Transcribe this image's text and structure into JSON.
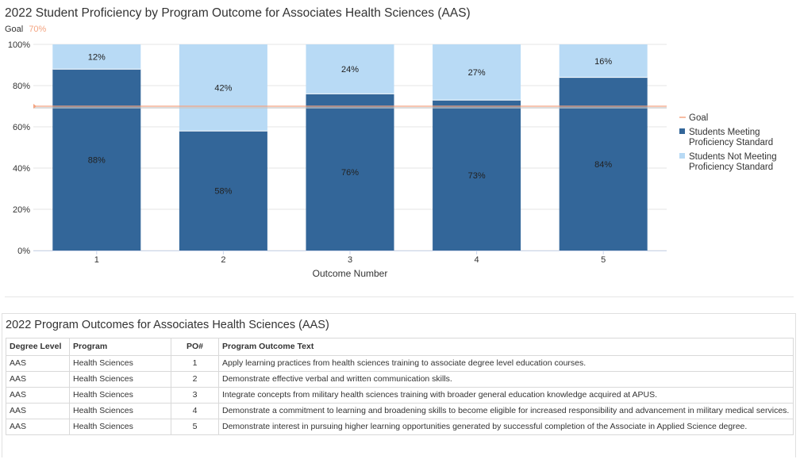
{
  "chart_data": {
    "type": "bar",
    "stacked": true,
    "title": "2022 Student Proficiency by Program Outcome for Associates Health Sciences (AAS)",
    "goal": {
      "label": "Goal",
      "value": 70,
      "value_label": "70%",
      "color": "#f4a582"
    },
    "xlabel": "Outcome Number",
    "ylabel": "",
    "categories": [
      "1",
      "2",
      "3",
      "4",
      "5"
    ],
    "ylim": [
      0,
      100
    ],
    "yticks": [
      "0%",
      "20%",
      "40%",
      "60%",
      "80%",
      "100%"
    ],
    "series": [
      {
        "name": "Students Meeting Proficiency Standard",
        "values": [
          88,
          58,
          76,
          73,
          84
        ],
        "labels": [
          "88%",
          "58%",
          "76%",
          "73%",
          "84%"
        ],
        "color": "#336699"
      },
      {
        "name": "Students Not Meeting Proficiency Standard",
        "values": [
          12,
          42,
          24,
          27,
          16
        ],
        "labels": [
          "12%",
          "42%",
          "24%",
          "27%",
          "16%"
        ],
        "color": "#b8daf5"
      }
    ],
    "legend": {
      "position": "right",
      "items": [
        {
          "lines": [
            "Goal"
          ],
          "color": "#f4a582",
          "kind": "line"
        },
        {
          "lines": [
            "Students Meeting",
            "Proficiency Standard"
          ],
          "color": "#336699",
          "kind": "box"
        },
        {
          "lines": [
            "Students Not Meeting",
            "Proficiency Standard"
          ],
          "color": "#b8daf5",
          "kind": "box"
        }
      ]
    },
    "grid": true
  },
  "outcomes_table": {
    "title": "2022 Program Outcomes for Associates Health Sciences (AAS)",
    "headers": {
      "degree": "Degree Level",
      "program": "Program",
      "po": "PO#",
      "text": "Program Outcome Text"
    },
    "rows": [
      {
        "degree": "AAS",
        "program": "Health Sciences",
        "po": "1",
        "text": "Apply learning practices from health sciences training to associate degree level education courses."
      },
      {
        "degree": "AAS",
        "program": "Health Sciences",
        "po": "2",
        "text": "Demonstrate effective verbal and written communication skills."
      },
      {
        "degree": "AAS",
        "program": "Health Sciences",
        "po": "3",
        "text": "Integrate concepts from military health sciences training with broader general education knowledge acquired at APUS."
      },
      {
        "degree": "AAS",
        "program": "Health Sciences",
        "po": "4",
        "text": "Demonstrate a commitment to learning and broadening skills to become eligible for increased responsibility and advancement in military medical services."
      },
      {
        "degree": "AAS",
        "program": "Health Sciences",
        "po": "5",
        "text": "Demonstrate interest in pursuing higher learning opportunities generated by successful completion of the Associate in Applied Science degree."
      }
    ]
  }
}
